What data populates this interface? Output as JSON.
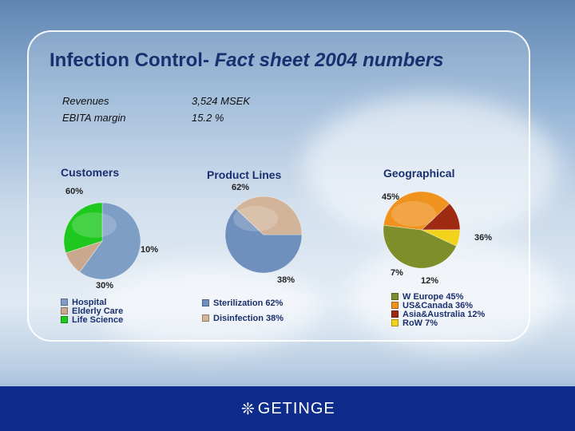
{
  "header": {
    "title_main": "Infection Control-",
    "title_italic": "Fact sheet 2004 numbers"
  },
  "metrics": [
    {
      "label": "Revenues",
      "value": "3,524 MSEK"
    },
    {
      "label": "EBITA margin",
      "value": "15.2 %"
    }
  ],
  "footer": {
    "brand": "GETINGE",
    "brand_icon": "snowflake-icon"
  },
  "chart_data": [
    {
      "type": "pie",
      "title": "Customers",
      "categories": [
        "Hospital",
        "Elderly Care",
        "Life Science"
      ],
      "values": [
        60,
        10,
        30
      ],
      "value_labels": [
        "60%",
        "10%",
        "30%"
      ],
      "legend": [
        "Hospital",
        "Elderly Care",
        "Life Science"
      ],
      "colors": [
        "#7e9ec6",
        "#c9a88e",
        "#1ec81e"
      ]
    },
    {
      "type": "pie",
      "title": "Product Lines",
      "categories": [
        "Sterilization",
        "Disinfection"
      ],
      "values": [
        62,
        38
      ],
      "value_labels": [
        "62%",
        "38%"
      ],
      "legend": [
        "Sterilization 62%",
        "Disinfection 38%"
      ],
      "colors": [
        "#6f8fbd",
        "#d2b49a"
      ]
    },
    {
      "type": "pie",
      "title": "Geographical",
      "categories": [
        "W Europe",
        "US&Canada",
        "Asia&Australia",
        "RoW"
      ],
      "values": [
        45,
        36,
        12,
        7
      ],
      "value_labels": [
        "45%",
        "36%",
        "12%",
        "7%"
      ],
      "legend": [
        "W Europe 45%",
        "US&Canada 36%",
        "Asia&Australia 12%",
        "RoW 7%"
      ],
      "colors": [
        "#7d8e2a",
        "#f0921e",
        "#9e2a12",
        "#f2d21a"
      ]
    }
  ]
}
